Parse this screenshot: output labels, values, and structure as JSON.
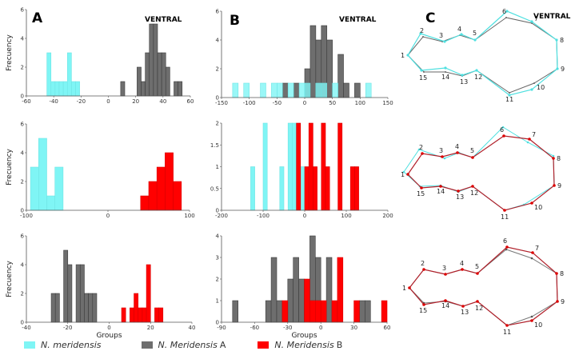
{
  "colors": {
    "cyan": "#7ff5f5",
    "gray": "#6e6e6e",
    "red": "#ff0000",
    "gray_line": "#666666",
    "red_line": "#b0202a"
  },
  "panel_letters": {
    "a": "A",
    "b": "B",
    "c": "C"
  },
  "ventral_label": "VENTRAL",
  "legend": [
    {
      "label": "N. meridensis",
      "suffix": "",
      "color_key": "cyan"
    },
    {
      "label": "N. Meridensis",
      "suffix": "A",
      "color_key": "gray"
    },
    {
      "label": "N. Meridensis",
      "suffix": "B",
      "color_key": "red"
    }
  ],
  "chart_data": [
    {
      "id": "A1",
      "type": "bar",
      "ylabel": "Frecuency",
      "xlabel": "",
      "xlim": [
        -60,
        60
      ],
      "ylim": [
        0,
        6
      ],
      "xticks": [
        -60,
        -40,
        -20,
        0,
        20,
        40,
        60
      ],
      "yticks": [
        0,
        2,
        4,
        6
      ],
      "bin_width": 3,
      "series": [
        {
          "name": "N. meridensis",
          "color_key": "cyan",
          "x": [
            -43.5,
            -40.5,
            -37.5,
            -34.5,
            -31.5,
            -28.5,
            -25.5,
            -22.5
          ],
          "values": [
            3,
            1,
            1,
            1,
            1,
            3,
            1,
            1
          ]
        },
        {
          "name": "N. Meridensis A",
          "color_key": "gray",
          "x": [
            10.5,
            22.5,
            25.5,
            28.5,
            31.5,
            34.5,
            37.5,
            40.5,
            43.5,
            49.5,
            52.5
          ],
          "values": [
            1,
            2,
            1,
            3,
            5,
            5,
            3,
            3,
            2,
            1,
            1
          ]
        }
      ]
    },
    {
      "id": "B1",
      "type": "bar",
      "ylabel": "",
      "xlabel": "",
      "xlim": [
        -150,
        150
      ],
      "ylim": [
        0,
        6
      ],
      "xticks": [
        -150,
        -100,
        -50,
        0,
        50,
        100,
        150
      ],
      "yticks": [
        0,
        2,
        4,
        6
      ],
      "bin_width": 10,
      "series": [
        {
          "name": "N. Meridensis A",
          "color_key": "gray",
          "x": [
            -35,
            -15,
            5,
            15,
            25,
            35,
            45,
            65,
            75,
            95
          ],
          "values": [
            1,
            1,
            2,
            5,
            4,
            5,
            4,
            3,
            1,
            1
          ]
        },
        {
          "name": "N. meridensis",
          "color_key": "cyan",
          "alpha": 0.8,
          "x": [
            -125,
            -105,
            -75,
            -55,
            -45,
            -25,
            -5,
            5,
            25,
            35,
            55,
            115
          ],
          "values": [
            1,
            1,
            1,
            1,
            1,
            1,
            1,
            1,
            1,
            1,
            1,
            1
          ]
        }
      ]
    },
    {
      "id": "A2",
      "type": "bar",
      "ylabel": "Frecuency",
      "xlabel": "",
      "xlim": [
        -100,
        100
      ],
      "ylim": [
        0,
        6
      ],
      "xticks": [
        -100,
        0,
        100
      ],
      "yticks": [
        0,
        2,
        4,
        6
      ],
      "bin_width": 10,
      "series": [
        {
          "name": "N. meridensis",
          "color_key": "cyan",
          "x": [
            -90,
            -80,
            -70,
            -60
          ],
          "values": [
            3,
            5,
            1,
            3
          ]
        },
        {
          "name": "N. Meridensis B",
          "color_key": "red",
          "x": [
            45,
            55,
            65,
            75,
            85
          ],
          "values": [
            1,
            2,
            3,
            4,
            2
          ]
        }
      ]
    },
    {
      "id": "B2",
      "type": "bar",
      "ylabel": "",
      "xlabel": "",
      "xlim": [
        -200,
        200
      ],
      "ylim": [
        0,
        2
      ],
      "xticks": [
        -200,
        -100,
        0,
        100,
        200
      ],
      "yticks": [
        0,
        0.5,
        1,
        1.5,
        2
      ],
      "bin_width": 10,
      "series": [
        {
          "name": "N. meridensis",
          "color_key": "cyan",
          "x": [
            -125,
            -95,
            -55,
            -35,
            -25,
            -5
          ],
          "values": [
            1,
            2,
            1,
            2,
            2,
            1
          ]
        },
        {
          "name": "N. Meridensis B",
          "color_key": "red",
          "x": [
            -15,
            5,
            15,
            25,
            45,
            55,
            85,
            115,
            125
          ],
          "values": [
            2,
            1,
            2,
            1,
            2,
            1,
            2,
            1,
            1
          ]
        }
      ]
    },
    {
      "id": "A3",
      "type": "bar",
      "ylabel": "Frecuency",
      "xlabel": "Groups",
      "xlim": [
        -40,
        40
      ],
      "ylim": [
        0,
        6
      ],
      "xticks": [
        -40,
        -20,
        0,
        20,
        40
      ],
      "yticks": [
        0,
        2,
        4,
        6
      ],
      "bin_width": 2,
      "series": [
        {
          "name": "N. Meridensis A",
          "color_key": "gray",
          "x": [
            -27,
            -25,
            -21,
            -19,
            -15,
            -13,
            -11,
            -9,
            -7
          ],
          "values": [
            2,
            2,
            5,
            4,
            4,
            4,
            2,
            2,
            2
          ]
        },
        {
          "name": "N. Meridensis B",
          "color_key": "red",
          "x": [
            7,
            11,
            13,
            15,
            17,
            19,
            23,
            25
          ],
          "values": [
            1,
            1,
            2,
            1,
            1,
            4,
            1,
            1
          ]
        }
      ]
    },
    {
      "id": "B3",
      "type": "bar",
      "ylabel": "",
      "xlabel": "Groups",
      "xlim": [
        -90,
        60
      ],
      "ylim": [
        0,
        4
      ],
      "xticks": [
        -90,
        -60,
        -30,
        0,
        30,
        60
      ],
      "yticks": [
        0,
        1,
        2,
        3,
        4
      ],
      "bin_width": 5,
      "series": [
        {
          "name": "N. Meridensis A",
          "color_key": "gray",
          "x": [
            -77.5,
            -47.5,
            -42.5,
            -37.5,
            -27.5,
            -22.5,
            -17.5,
            -7.5,
            -2.5,
            7.5,
            37.5,
            42.5
          ],
          "values": [
            1,
            1,
            3,
            1,
            2,
            3,
            2,
            4,
            3,
            3,
            1,
            1
          ]
        },
        {
          "name": "N. Meridensis B",
          "color_key": "red",
          "x": [
            -32.5,
            -12.5,
            -7.5,
            -2.5,
            2.5,
            12.5,
            17.5,
            32.5,
            57.5
          ],
          "values": [
            1,
            2,
            1,
            1,
            1,
            1,
            3,
            1,
            1
          ]
        }
      ]
    }
  ],
  "landmark_labels": [
    "1",
    "2",
    "3",
    "4",
    "5",
    "6",
    "7",
    "8",
    "9",
    "10",
    "11",
    "12",
    "13",
    "14",
    "15"
  ]
}
